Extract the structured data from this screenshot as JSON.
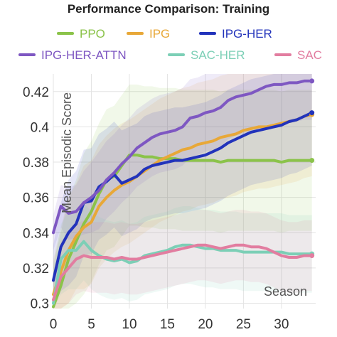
{
  "chart_data": {
    "type": "line",
    "title": "Performance Comparison: Training",
    "xlabel": "Season",
    "ylabel": "Mean Episodic Score",
    "xlim": [
      0,
      34.5
    ],
    "ylim": [
      0.297,
      0.43
    ],
    "xticks": [
      "0",
      "5",
      "10",
      "15",
      "20",
      "25",
      "30"
    ],
    "yticks": [
      "0.3",
      "0.32",
      "0.34",
      "0.36",
      "0.38",
      "0.4",
      "0.42"
    ],
    "xtick_values": [
      0,
      5,
      10,
      15,
      20,
      25,
      30
    ],
    "ytick_values": [
      0.3,
      0.32,
      0.34,
      0.36,
      0.38,
      0.4,
      0.42
    ],
    "grid": true,
    "legend": "top",
    "x": [
      0,
      1,
      2,
      3,
      4,
      5,
      6,
      7,
      8,
      9,
      10,
      11,
      12,
      13,
      14,
      15,
      16,
      17,
      18,
      19,
      20,
      21,
      22,
      23,
      24,
      25,
      26,
      27,
      28,
      29,
      30,
      31,
      32,
      33,
      34
    ],
    "series": [
      {
        "name": "PPO",
        "color": "#8bc34a",
        "values": [
          0.298,
          0.31,
          0.325,
          0.335,
          0.345,
          0.352,
          0.362,
          0.37,
          0.372,
          0.378,
          0.384,
          0.384,
          0.383,
          0.383,
          0.382,
          0.382,
          0.382,
          0.381,
          0.381,
          0.381,
          0.381,
          0.381,
          0.38,
          0.381,
          0.381,
          0.381,
          0.381,
          0.381,
          0.381,
          0.381,
          0.38,
          0.381,
          0.381,
          0.381,
          0.381
        ],
        "band": [
          0.025,
          0.03,
          0.035,
          0.035,
          0.04,
          0.04,
          0.04,
          0.04,
          0.04,
          0.04,
          0.04,
          0.04,
          0.04,
          0.04,
          0.04,
          0.04,
          0.04,
          0.04,
          0.04,
          0.04,
          0.04,
          0.04,
          0.04,
          0.04,
          0.04,
          0.04,
          0.04,
          0.04,
          0.04,
          0.04,
          0.04,
          0.04,
          0.04,
          0.04,
          0.04
        ]
      },
      {
        "name": "IPG",
        "color": "#e8a838",
        "values": [
          0.305,
          0.318,
          0.33,
          0.338,
          0.343,
          0.346,
          0.355,
          0.36,
          0.364,
          0.367,
          0.369,
          0.372,
          0.375,
          0.378,
          0.381,
          0.383,
          0.385,
          0.387,
          0.388,
          0.39,
          0.391,
          0.392,
          0.394,
          0.395,
          0.396,
          0.398,
          0.399,
          0.4,
          0.4,
          0.401,
          0.402,
          0.403,
          0.404,
          0.406,
          0.407
        ],
        "band": [
          0.02,
          0.025,
          0.03,
          0.03,
          0.035,
          0.035,
          0.035,
          0.035,
          0.035,
          0.035,
          0.035,
          0.035,
          0.035,
          0.035,
          0.035,
          0.035,
          0.035,
          0.035,
          0.035,
          0.035,
          0.035,
          0.035,
          0.035,
          0.035,
          0.035,
          0.035,
          0.035,
          0.035,
          0.035,
          0.035,
          0.035,
          0.035,
          0.035,
          0.035,
          0.035
        ]
      },
      {
        "name": "IPG-HER",
        "color": "#2233bb",
        "values": [
          0.313,
          0.332,
          0.34,
          0.345,
          0.357,
          0.358,
          0.366,
          0.369,
          0.373,
          0.368,
          0.37,
          0.372,
          0.376,
          0.378,
          0.379,
          0.38,
          0.381,
          0.381,
          0.382,
          0.383,
          0.384,
          0.386,
          0.388,
          0.391,
          0.393,
          0.395,
          0.397,
          0.398,
          0.399,
          0.4,
          0.401,
          0.403,
          0.404,
          0.406,
          0.408
        ],
        "band": [
          0.02,
          0.025,
          0.03,
          0.03,
          0.03,
          0.03,
          0.03,
          0.03,
          0.03,
          0.03,
          0.03,
          0.03,
          0.03,
          0.03,
          0.03,
          0.03,
          0.03,
          0.03,
          0.03,
          0.03,
          0.03,
          0.03,
          0.03,
          0.03,
          0.03,
          0.03,
          0.03,
          0.03,
          0.03,
          0.03,
          0.03,
          0.03,
          0.03,
          0.03,
          0.03
        ]
      },
      {
        "name": "IPG-HER-ATTN",
        "color": "#7e57c2",
        "values": [
          0.34,
          0.355,
          0.351,
          0.352,
          0.357,
          0.36,
          0.364,
          0.37,
          0.374,
          0.379,
          0.383,
          0.388,
          0.391,
          0.394,
          0.396,
          0.397,
          0.398,
          0.4,
          0.405,
          0.406,
          0.408,
          0.409,
          0.411,
          0.415,
          0.417,
          0.418,
          0.419,
          0.421,
          0.423,
          0.424,
          0.424,
          0.425,
          0.425,
          0.426,
          0.426
        ],
        "band": [
          0.01,
          0.012,
          0.015,
          0.015,
          0.018,
          0.02,
          0.022,
          0.022,
          0.022,
          0.022,
          0.022,
          0.022,
          0.022,
          0.022,
          0.022,
          0.022,
          0.022,
          0.022,
          0.022,
          0.022,
          0.022,
          0.022,
          0.022,
          0.022,
          0.022,
          0.022,
          0.022,
          0.022,
          0.022,
          0.022,
          0.022,
          0.022,
          0.022,
          0.022,
          0.022
        ]
      },
      {
        "name": "SAC-HER",
        "color": "#7ccfb6",
        "values": [
          0.3,
          0.325,
          0.33,
          0.33,
          0.335,
          0.33,
          0.327,
          0.325,
          0.324,
          0.325,
          0.323,
          0.324,
          0.327,
          0.328,
          0.329,
          0.33,
          0.332,
          0.333,
          0.333,
          0.332,
          0.331,
          0.331,
          0.33,
          0.33,
          0.33,
          0.329,
          0.329,
          0.329,
          0.329,
          0.329,
          0.329,
          0.328,
          0.328,
          0.328,
          0.328
        ],
        "band": [
          0.02,
          0.02,
          0.022,
          0.022,
          0.022,
          0.022,
          0.022,
          0.022,
          0.022,
          0.022,
          0.022,
          0.022,
          0.022,
          0.022,
          0.022,
          0.022,
          0.022,
          0.022,
          0.022,
          0.022,
          0.022,
          0.022,
          0.022,
          0.022,
          0.022,
          0.022,
          0.022,
          0.022,
          0.022,
          0.022,
          0.022,
          0.022,
          0.022,
          0.022,
          0.022
        ]
      },
      {
        "name": "SAC",
        "color": "#e27da0",
        "values": [
          0.302,
          0.315,
          0.32,
          0.325,
          0.327,
          0.326,
          0.326,
          0.326,
          0.325,
          0.326,
          0.325,
          0.325,
          0.326,
          0.327,
          0.328,
          0.329,
          0.33,
          0.331,
          0.332,
          0.333,
          0.333,
          0.332,
          0.331,
          0.332,
          0.333,
          0.333,
          0.332,
          0.332,
          0.331,
          0.329,
          0.327,
          0.326,
          0.326,
          0.327,
          0.327
        ],
        "band": [
          0.015,
          0.02,
          0.02,
          0.02,
          0.02,
          0.02,
          0.02,
          0.02,
          0.02,
          0.02,
          0.02,
          0.02,
          0.02,
          0.02,
          0.02,
          0.02,
          0.02,
          0.02,
          0.02,
          0.02,
          0.02,
          0.02,
          0.02,
          0.02,
          0.02,
          0.02,
          0.02,
          0.02,
          0.02,
          0.02,
          0.02,
          0.02,
          0.02,
          0.02,
          0.02
        ]
      }
    ]
  }
}
